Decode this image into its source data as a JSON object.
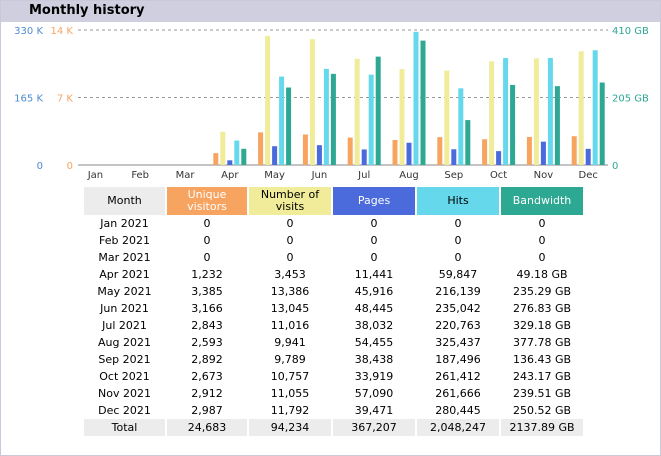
{
  "title": "Monthly history",
  "colors": {
    "unique_visitors": "#f8a461",
    "visits": "#f0ec99",
    "pages": "#4b6adb",
    "hits": "#66d8ec",
    "bandwidth": "#2da892",
    "left_axis_hits": "#4f8bd1",
    "left_axis_visitors": "#f8a461",
    "right_axis": "#2da892"
  },
  "chart_data": {
    "type": "bar",
    "categories": [
      "Jan",
      "Feb",
      "Mar",
      "Apr",
      "May",
      "Jun",
      "Jul",
      "Aug",
      "Sep",
      "Oct",
      "Nov",
      "Dec"
    ],
    "left_axis_hits_ticks": [
      "330 K",
      "165 K",
      "0"
    ],
    "left_axis_visitors_ticks": [
      "14 K",
      "7 K",
      "0"
    ],
    "right_axis_ticks": [
      "410 GB",
      "205 GB",
      "0"
    ],
    "ylim_hits": [
      0,
      330000
    ],
    "ylim_visitors": [
      0,
      14000
    ],
    "ylim_bandwidth_gb": [
      0,
      410
    ],
    "series": [
      {
        "key": "unique_visitors",
        "axis": "visitors",
        "values": [
          0,
          0,
          0,
          1232,
          3385,
          3166,
          2843,
          2593,
          2892,
          2673,
          2912,
          2987
        ]
      },
      {
        "key": "visits",
        "axis": "visitors",
        "values": [
          0,
          0,
          0,
          3453,
          13386,
          13045,
          11016,
          9941,
          9789,
          10757,
          11055,
          11792
        ]
      },
      {
        "key": "pages",
        "axis": "hits",
        "values": [
          0,
          0,
          0,
          11441,
          45916,
          48445,
          38032,
          54455,
          38438,
          33919,
          57090,
          39471
        ]
      },
      {
        "key": "hits",
        "axis": "hits",
        "values": [
          0,
          0,
          0,
          59847,
          216139,
          235042,
          220763,
          325437,
          187496,
          261412,
          261666,
          280445
        ]
      },
      {
        "key": "bandwidth",
        "axis": "bandwidth",
        "values": [
          0,
          0,
          0,
          49.18,
          235.29,
          276.83,
          329.18,
          377.78,
          136.43,
          243.17,
          239.51,
          250.52
        ]
      }
    ]
  },
  "table": {
    "headers": {
      "month": "Month",
      "unique": "Unique visitors",
      "visits": "Number of visits",
      "pages": "Pages",
      "hits": "Hits",
      "bandwidth": "Bandwidth"
    },
    "rows": [
      {
        "month": "Jan 2021",
        "unique": "0",
        "visits": "0",
        "pages": "0",
        "hits": "0",
        "bandwidth": "0"
      },
      {
        "month": "Feb 2021",
        "unique": "0",
        "visits": "0",
        "pages": "0",
        "hits": "0",
        "bandwidth": "0"
      },
      {
        "month": "Mar 2021",
        "unique": "0",
        "visits": "0",
        "pages": "0",
        "hits": "0",
        "bandwidth": "0"
      },
      {
        "month": "Apr 2021",
        "unique": "1,232",
        "visits": "3,453",
        "pages": "11,441",
        "hits": "59,847",
        "bandwidth": "49.18 GB"
      },
      {
        "month": "May 2021",
        "unique": "3,385",
        "visits": "13,386",
        "pages": "45,916",
        "hits": "216,139",
        "bandwidth": "235.29 GB"
      },
      {
        "month": "Jun 2021",
        "unique": "3,166",
        "visits": "13,045",
        "pages": "48,445",
        "hits": "235,042",
        "bandwidth": "276.83 GB"
      },
      {
        "month": "Jul 2021",
        "unique": "2,843",
        "visits": "11,016",
        "pages": "38,032",
        "hits": "220,763",
        "bandwidth": "329.18 GB"
      },
      {
        "month": "Aug 2021",
        "unique": "2,593",
        "visits": "9,941",
        "pages": "54,455",
        "hits": "325,437",
        "bandwidth": "377.78 GB"
      },
      {
        "month": "Sep 2021",
        "unique": "2,892",
        "visits": "9,789",
        "pages": "38,438",
        "hits": "187,496",
        "bandwidth": "136.43 GB"
      },
      {
        "month": "Oct 2021",
        "unique": "2,673",
        "visits": "10,757",
        "pages": "33,919",
        "hits": "261,412",
        "bandwidth": "243.17 GB"
      },
      {
        "month": "Nov 2021",
        "unique": "2,912",
        "visits": "11,055",
        "pages": "57,090",
        "hits": "261,666",
        "bandwidth": "239.51 GB"
      },
      {
        "month": "Dec 2021",
        "unique": "2,987",
        "visits": "11,792",
        "pages": "39,471",
        "hits": "280,445",
        "bandwidth": "250.52 GB"
      }
    ],
    "total": {
      "month": "Total",
      "unique": "24,683",
      "visits": "94,234",
      "pages": "367,207",
      "hits": "2,048,247",
      "bandwidth": "2137.89 GB"
    }
  }
}
